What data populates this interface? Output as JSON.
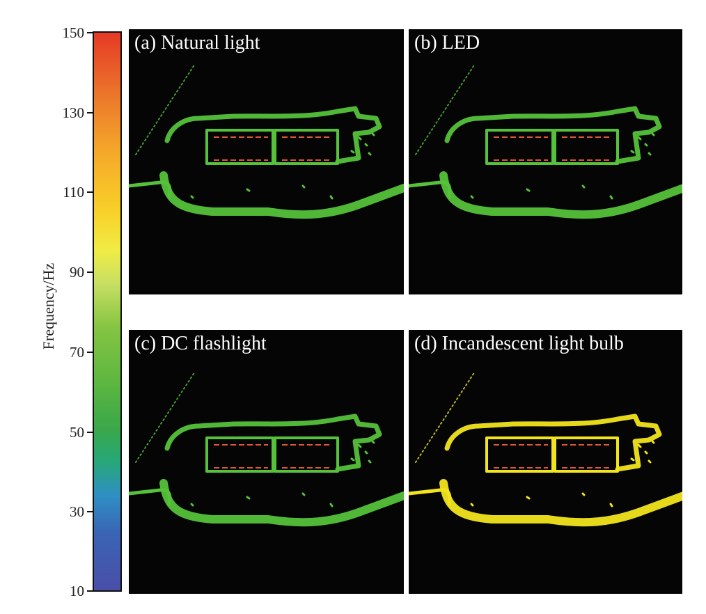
{
  "colorbar": {
    "label": "Frequency/Hz",
    "ticks": [
      "150",
      "130",
      "110",
      "90",
      "70",
      "50",
      "30",
      "10"
    ]
  },
  "panels": [
    {
      "id": "a",
      "title": "(a) Natural light",
      "color": "#55c23a"
    },
    {
      "id": "b",
      "title": "(b) LED",
      "color": "#55c23a"
    },
    {
      "id": "c",
      "title": "(c) DC flashlight",
      "color": "#55c23a"
    },
    {
      "id": "d",
      "title": "(d) Incandescent light bulb",
      "color": "#f2e51e"
    }
  ],
  "colors": {
    "background": "#050505",
    "green": "#55c23a",
    "yellow": "#f2e51e",
    "marking": "#e0572e"
  }
}
